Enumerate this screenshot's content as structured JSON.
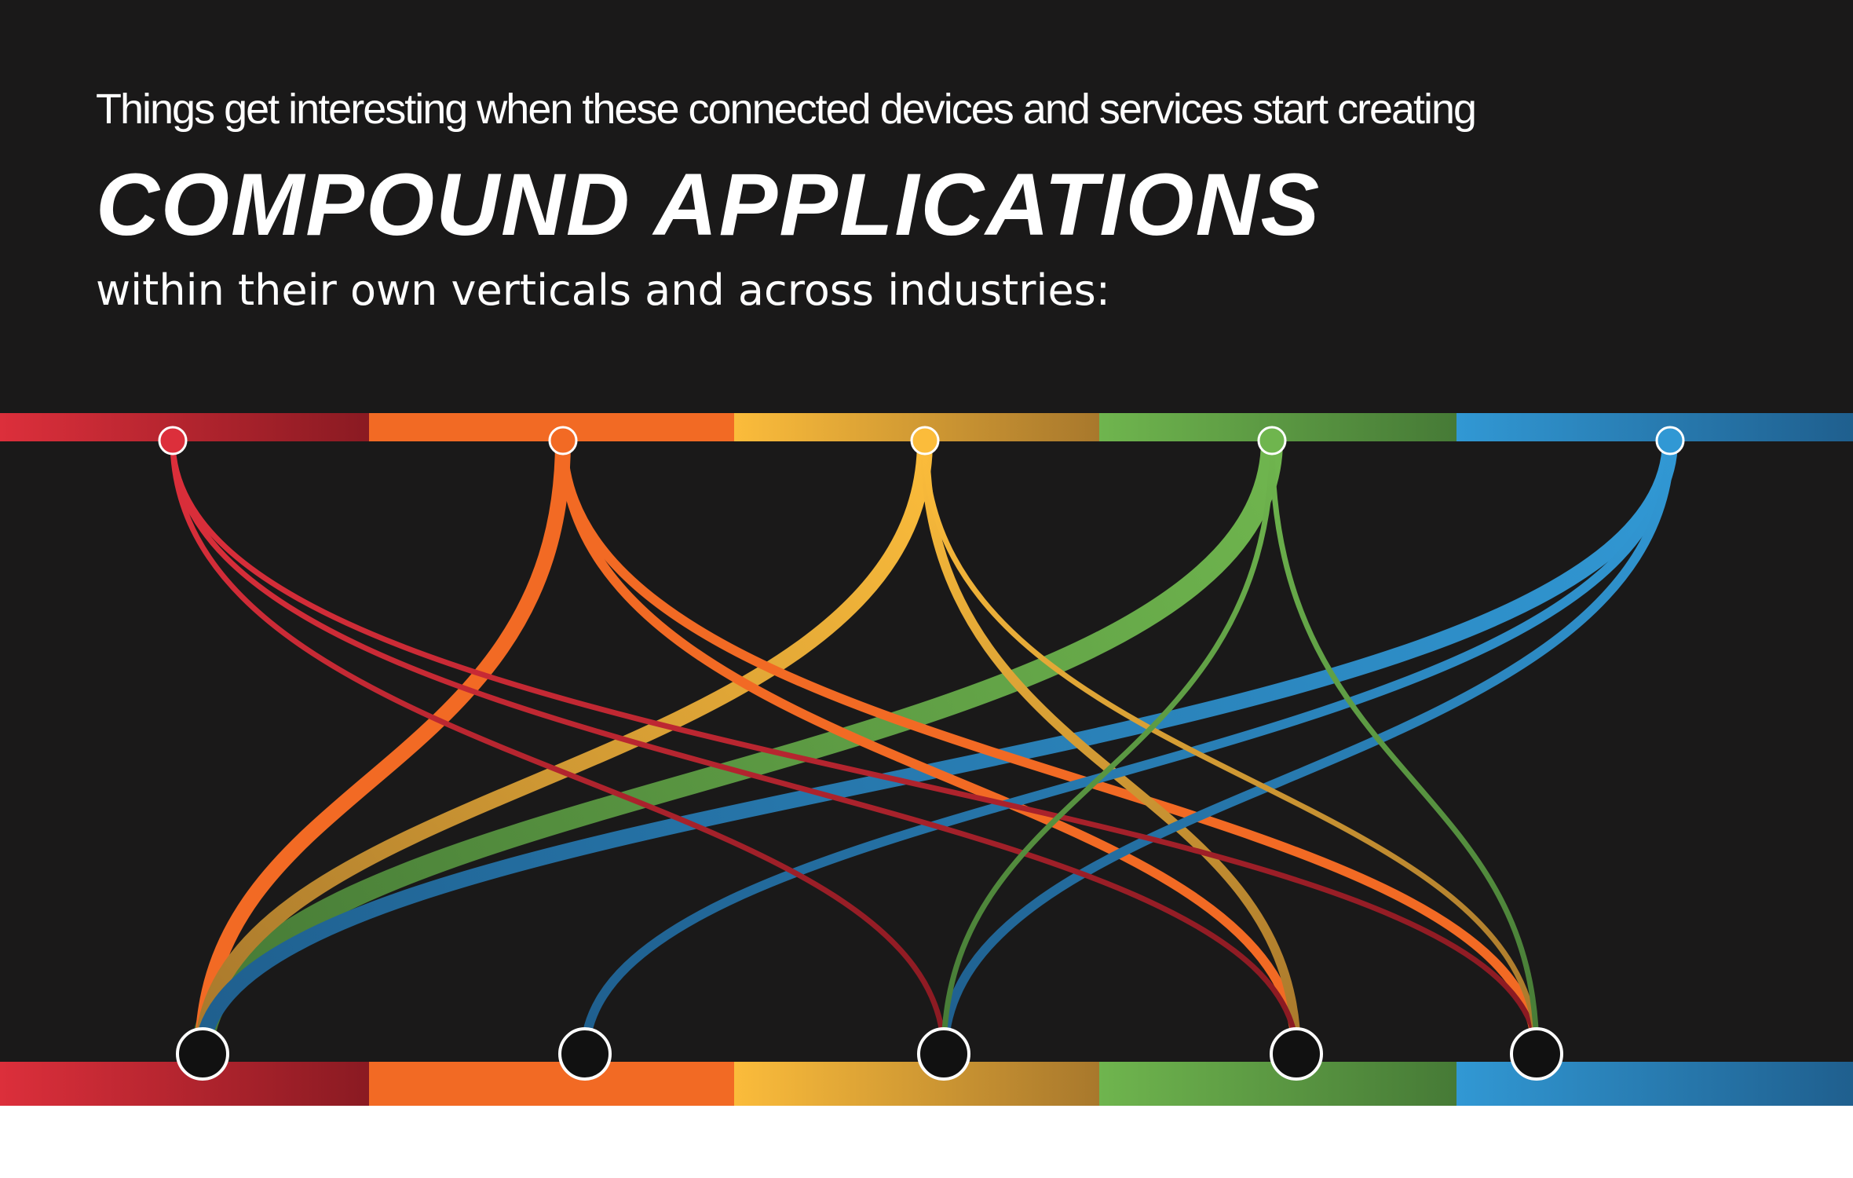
{
  "intro_line": "Things get interesting when these connected devices and services start creating",
  "headline": "COMPOUND APPLICATIONS",
  "sub_line": "within their own verticals and across industries:",
  "bands": [
    {
      "id": "red",
      "from": "#dc2f3b",
      "to": "#8a1a22"
    },
    {
      "id": "orange",
      "from": "#f26a24",
      "to": "#f26a24"
    },
    {
      "id": "yellow",
      "from": "#fbbc3b",
      "to": "#a8782c"
    },
    {
      "id": "green",
      "from": "#6fb54e",
      "to": "#467a36"
    },
    {
      "id": "blue",
      "from": "#3198d4",
      "to": "#1f5f8e"
    }
  ],
  "connections": [
    {
      "from": "red",
      "to": "blue",
      "weight": "thin"
    },
    {
      "from": "red",
      "to": "green",
      "weight": "thin"
    },
    {
      "from": "red",
      "to": "yellow",
      "weight": "thin"
    },
    {
      "from": "orange",
      "to": "red",
      "weight": "thick"
    },
    {
      "from": "orange",
      "to": "green",
      "weight": "medium"
    },
    {
      "from": "orange",
      "to": "blue",
      "weight": "medium"
    },
    {
      "from": "yellow",
      "to": "red",
      "weight": "thick"
    },
    {
      "from": "yellow",
      "to": "green",
      "weight": "medium"
    },
    {
      "from": "yellow",
      "to": "blue",
      "weight": "thin"
    },
    {
      "from": "green",
      "to": "red",
      "weight": "extra"
    },
    {
      "from": "green",
      "to": "yellow",
      "weight": "thin"
    },
    {
      "from": "green",
      "to": "blue",
      "weight": "thin"
    },
    {
      "from": "blue",
      "to": "red",
      "weight": "thick"
    },
    {
      "from": "blue",
      "to": "orange",
      "weight": "medium"
    },
    {
      "from": "blue",
      "to": "yellow",
      "weight": "medium"
    }
  ]
}
